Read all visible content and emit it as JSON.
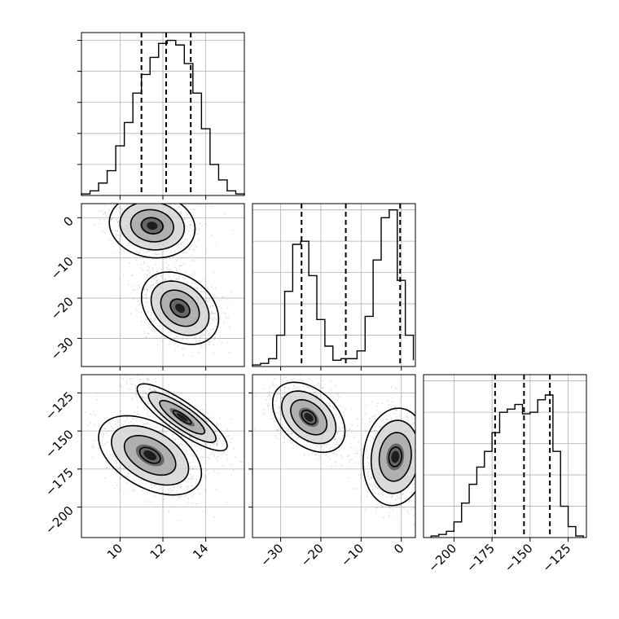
{
  "chart_data": {
    "type": "corner",
    "title": "",
    "parameters": [
      "",
      "",
      ""
    ],
    "grid": true,
    "colors": {
      "line": "#000000",
      "grid": "#b0b0b0",
      "scatter": "#7a7a7a",
      "background": "#ffffff"
    },
    "ranges": [
      [
        8.2,
        15.8
      ],
      [
        -37,
        3.5
      ],
      [
        -220,
        -113
      ]
    ],
    "ticks": [
      {
        "values": [
          10,
          12,
          14
        ],
        "labels": [
          "10",
          "12",
          "14"
        ]
      },
      {
        "values": [
          -30,
          -20,
          -10,
          0
        ],
        "labels": [
          "−30",
          "−20",
          "−10",
          "0"
        ]
      },
      {
        "values": [
          -200,
          -175,
          -150,
          -125
        ],
        "labels": [
          "−200",
          "−175",
          "−150",
          "−125"
        ]
      }
    ],
    "quantiles": [
      [
        11.0,
        12.15,
        13.3
      ],
      [
        -24.8,
        -13.8,
        -0.3
      ],
      [
        -173,
        -154,
        -137
      ]
    ],
    "histograms": [
      {
        "param": 0,
        "bin_edges": [
          8.2,
          8.6,
          9.0,
          9.4,
          9.8,
          10.2,
          10.6,
          11.0,
          11.4,
          11.8,
          12.2,
          12.6,
          13.0,
          13.4,
          13.8,
          14.2,
          14.6,
          15.0,
          15.4,
          15.8
        ],
        "counts": [
          0.01,
          0.03,
          0.08,
          0.16,
          0.32,
          0.47,
          0.66,
          0.78,
          0.89,
          0.98,
          1.0,
          0.97,
          0.85,
          0.66,
          0.43,
          0.2,
          0.1,
          0.03,
          0.01
        ],
        "ymax": 1.05,
        "y_gridlines": [
          0.2,
          0.4,
          0.6,
          0.8,
          1.0
        ]
      },
      {
        "param": 1,
        "bin_edges": [
          -37,
          -35,
          -33,
          -31,
          -29,
          -27,
          -25,
          -23,
          -21,
          -19,
          -17,
          -15,
          -13,
          -11,
          -9,
          -7,
          -5,
          -3,
          -1,
          1,
          3
        ],
        "counts": [
          0.01,
          0.02,
          0.05,
          0.2,
          0.48,
          0.78,
          0.8,
          0.58,
          0.3,
          0.13,
          0.04,
          0.05,
          0.05,
          0.1,
          0.32,
          0.68,
          0.95,
          1.0,
          0.55,
          0.2,
          0.04
        ],
        "ymax": 1.04,
        "y_gridlines": [
          0.2,
          0.4,
          0.6,
          0.8,
          1.0
        ]
      },
      {
        "param": 2,
        "bin_edges": [
          -215,
          -210,
          -205,
          -200,
          -195,
          -190,
          -185,
          -180,
          -175,
          -170,
          -165,
          -160,
          -155,
          -150,
          -145,
          -140,
          -135,
          -130,
          -125,
          -120,
          -115
        ],
        "counts": [
          0.01,
          0.02,
          0.04,
          0.1,
          0.22,
          0.34,
          0.45,
          0.55,
          0.67,
          0.8,
          0.82,
          0.85,
          0.79,
          0.8,
          0.88,
          0.91,
          0.55,
          0.2,
          0.07,
          0.01
        ],
        "ymax": 1.04,
        "y_gridlines": [
          0.2,
          0.4,
          0.6,
          0.8,
          1.0
        ]
      }
    ],
    "scatter_panels": [
      {
        "x_param": 0,
        "y_param": 1,
        "modes": [
          {
            "weight": 0.5,
            "mean": [
              11.5,
              -2
            ],
            "sd": [
              1.0,
              4.0
            ],
            "corr": -0.1
          },
          {
            "weight": 0.5,
            "mean": [
              12.8,
              -22.5
            ],
            "sd": [
              0.9,
              4.5
            ],
            "corr": -0.3
          }
        ],
        "contours": [
          {
            "mode": 0,
            "level": 2.0
          },
          {
            "mode": 0,
            "level": 1.5
          },
          {
            "mode": 0,
            "level": 1.0
          },
          {
            "mode": 0,
            "level": 0.5
          },
          {
            "mode": 1,
            "level": 2.0
          },
          {
            "mode": 1,
            "level": 1.5
          },
          {
            "mode": 1,
            "level": 1.0
          },
          {
            "mode": 1,
            "level": 0.5
          }
        ]
      },
      {
        "x_param": 0,
        "y_param": 2,
        "modes": [
          {
            "weight": 0.5,
            "mean": [
              11.4,
              -166
            ],
            "sd": [
              1.2,
              13.0
            ],
            "corr": -0.45
          },
          {
            "weight": 0.5,
            "mean": [
              12.9,
              -141
            ],
            "sd": [
              1.05,
              11.0
            ],
            "corr": -0.85
          }
        ],
        "contours": [
          {
            "mode": 0,
            "level": 2.0
          },
          {
            "mode": 0,
            "level": 1.5
          },
          {
            "mode": 0,
            "level": 1.0
          },
          {
            "mode": 0,
            "level": 0.4
          },
          {
            "mode": 1,
            "level": 2.0
          },
          {
            "mode": 1,
            "level": 1.5
          },
          {
            "mode": 1,
            "level": 1.0
          },
          {
            "mode": 1,
            "level": 0.4
          }
        ]
      },
      {
        "x_param": 1,
        "y_param": 2,
        "modes": [
          {
            "weight": 0.5,
            "mean": [
              -23,
              -141
            ],
            "sd": [
              4.5,
              11.5
            ],
            "corr": -0.4
          },
          {
            "weight": 0.5,
            "mean": [
              -1.5,
              -167
            ],
            "sd": [
              4.0,
              16.0
            ],
            "corr": 0.1
          }
        ],
        "contours": [
          {
            "mode": 0,
            "level": 2.0
          },
          {
            "mode": 0,
            "level": 1.5
          },
          {
            "mode": 0,
            "level": 1.0
          },
          {
            "mode": 0,
            "level": 0.4
          },
          {
            "mode": 1,
            "level": 2.0
          },
          {
            "mode": 1,
            "level": 1.5
          },
          {
            "mode": 1,
            "level": 1.0
          },
          {
            "mode": 1,
            "level": 0.4
          }
        ]
      }
    ]
  }
}
